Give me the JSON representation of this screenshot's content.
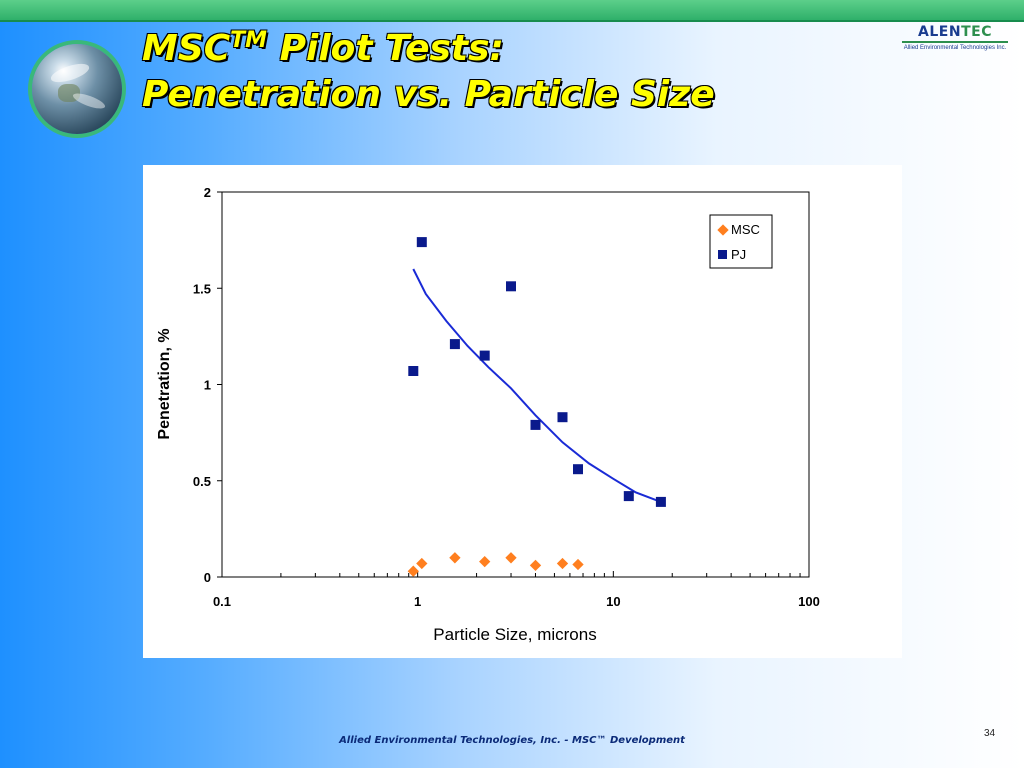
{
  "slide": {
    "title_prefix": "MSC",
    "title_tm": "TM",
    "title_line1_rest": " Pilot Tests:",
    "title_line2": "Penetration vs. Particle Size",
    "logo_name_a": "ALEN",
    "logo_name_b": "TEC",
    "logo_subtitle": "Allied Environmental Technologies Inc.",
    "footer": "Allied Environmental Technologies, Inc. - MSC™ Development",
    "page_number": "34"
  },
  "colors": {
    "title": "#ffff00",
    "msc": "#ff7f1f",
    "pj": "#0a1a8c",
    "trendline": "#1a2bd6"
  },
  "chart_data": {
    "type": "scatter",
    "x_scale": "log",
    "xlim": [
      0.1,
      100
    ],
    "ylim": [
      0,
      2
    ],
    "x_tick_labels": [
      "0.1",
      "1",
      "10",
      "100"
    ],
    "y_tick_labels": [
      "0",
      "0.5",
      "1",
      "1.5",
      "2"
    ],
    "xlabel": "Particle Size, microns",
    "ylabel": "Penetration, %",
    "grid": false,
    "legend_position": "top-right",
    "series": [
      {
        "name": "MSC",
        "marker": "diamond",
        "color": "#ff7f1f",
        "points": [
          [
            0.95,
            0.03
          ],
          [
            1.05,
            0.07
          ],
          [
            1.55,
            0.1
          ],
          [
            2.2,
            0.08
          ],
          [
            3.0,
            0.1
          ],
          [
            4.0,
            0.06
          ],
          [
            5.5,
            0.07
          ],
          [
            6.6,
            0.065
          ]
        ]
      },
      {
        "name": "PJ",
        "marker": "square",
        "color": "#0a1a8c",
        "points": [
          [
            0.95,
            1.07
          ],
          [
            1.05,
            1.74
          ],
          [
            1.55,
            1.21
          ],
          [
            2.2,
            1.15
          ],
          [
            3.0,
            1.51
          ],
          [
            4.0,
            0.79
          ],
          [
            5.5,
            0.83
          ],
          [
            6.6,
            0.56
          ],
          [
            12,
            0.42
          ],
          [
            17.5,
            0.39
          ]
        ]
      }
    ],
    "trendline": {
      "series": "PJ",
      "color": "#1a2bd6",
      "points": [
        [
          0.95,
          1.6
        ],
        [
          1.1,
          1.47
        ],
        [
          1.4,
          1.33
        ],
        [
          1.8,
          1.2
        ],
        [
          2.3,
          1.09
        ],
        [
          3.0,
          0.98
        ],
        [
          4.0,
          0.84
        ],
        [
          5.5,
          0.7
        ],
        [
          7.5,
          0.59
        ],
        [
          10,
          0.51
        ],
        [
          13,
          0.44
        ],
        [
          17.5,
          0.39
        ]
      ]
    }
  }
}
